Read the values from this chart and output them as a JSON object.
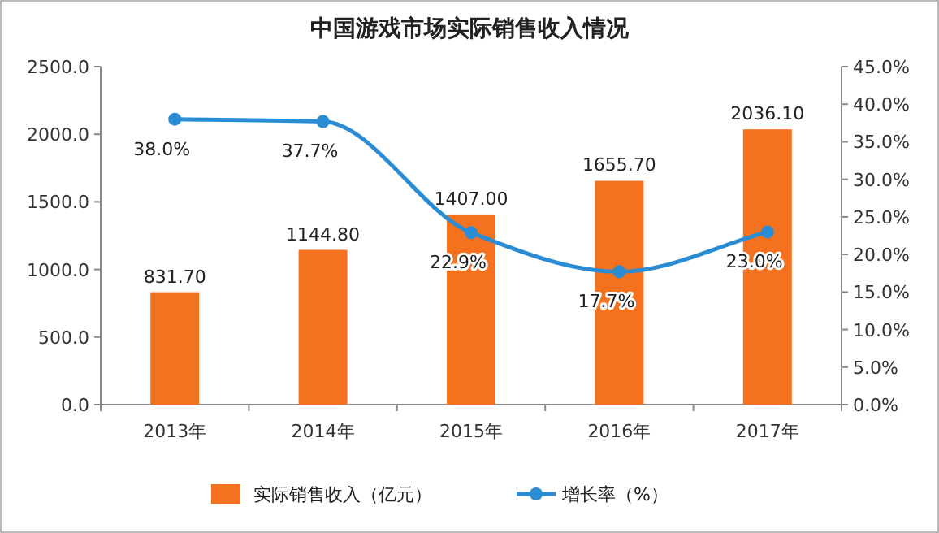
{
  "chart_data": {
    "type": "bar",
    "title": "中国游戏市场实际销售收入情况",
    "categories": [
      "2013年",
      "2014年",
      "2015年",
      "2016年",
      "2017年"
    ],
    "series": [
      {
        "name": "实际销售收入（亿元）",
        "color": "#f4711f",
        "values": [
          831.7,
          1144.8,
          1407.0,
          1655.7,
          2036.1
        ],
        "value_labels": [
          "831.70",
          "1144.80",
          "1407.00",
          "1655.70",
          "2036.10"
        ]
      },
      {
        "name": "增长率（%）",
        "type": "line",
        "axis": "y2",
        "color": "#2a8dd4",
        "values": [
          38.0,
          37.7,
          22.9,
          17.7,
          23.0
        ],
        "value_labels": [
          "38.0%",
          "37.7%",
          "22.9%",
          "17.7%",
          "23.0%"
        ],
        "marker": "circle"
      }
    ],
    "ylim": [
      0,
      2500
    ],
    "yticks": [
      {
        "value": 0,
        "label": "0.0"
      },
      {
        "value": 500,
        "label": "500.0"
      },
      {
        "value": 1000,
        "label": "1000.0"
      },
      {
        "value": 1500,
        "label": "1500.0"
      },
      {
        "value": 2000,
        "label": "2000.0"
      },
      {
        "value": 2500,
        "label": "2500.0"
      }
    ],
    "y2lim": [
      0,
      45
    ],
    "y2ticks": [
      {
        "value": 0,
        "label": "0.0%"
      },
      {
        "value": 5,
        "label": "5.0%"
      },
      {
        "value": 10,
        "label": "10.0%"
      },
      {
        "value": 15,
        "label": "15.0%"
      },
      {
        "value": 20,
        "label": "20.0%"
      },
      {
        "value": 25,
        "label": "25.0%"
      },
      {
        "value": 30,
        "label": "30.0%"
      },
      {
        "value": 35,
        "label": "35.0%"
      },
      {
        "value": 40,
        "label": "40.0%"
      },
      {
        "value": 45,
        "label": "45.0%"
      }
    ],
    "legend": "bottom",
    "grid": false
  }
}
